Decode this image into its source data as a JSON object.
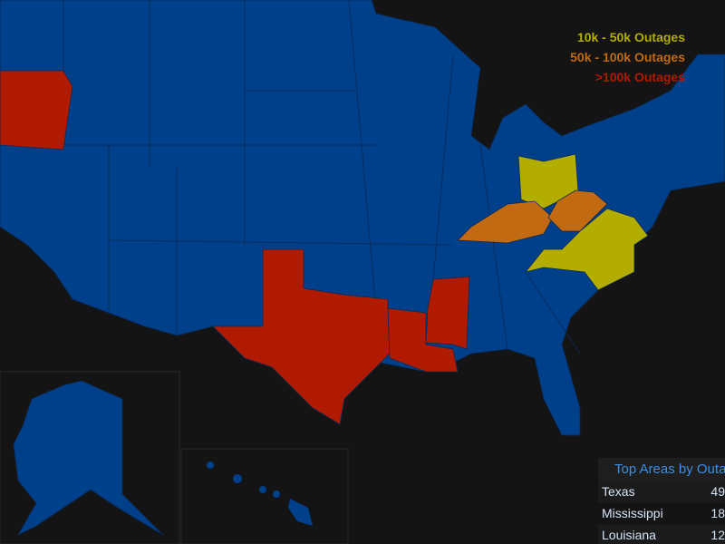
{
  "legend": {
    "items": [
      {
        "label": "10k - 50k Outages",
        "color": "#b3ad00"
      },
      {
        "label": "50k - 100k Outages",
        "color": "#c26a12"
      },
      {
        "label": ">100k Outages",
        "color": "#b01a00"
      }
    ]
  },
  "table": {
    "title": "Top Areas by Outa",
    "rows": [
      [
        "Texas",
        "49"
      ],
      [
        "Mississippi",
        "18"
      ],
      [
        "Louisiana",
        "12"
      ]
    ]
  }
}
